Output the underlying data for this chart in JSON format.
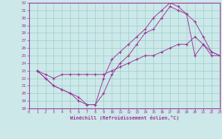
{
  "xlabel": "Windchill (Refroidissement éolien,°C)",
  "xlim": [
    0,
    23
  ],
  "ylim": [
    18,
    32
  ],
  "xticks": [
    0,
    1,
    2,
    3,
    4,
    5,
    6,
    7,
    8,
    9,
    10,
    11,
    12,
    13,
    14,
    15,
    16,
    17,
    18,
    19,
    20,
    21,
    22,
    23
  ],
  "yticks": [
    18,
    19,
    20,
    21,
    22,
    23,
    24,
    25,
    26,
    27,
    28,
    29,
    30,
    31,
    32
  ],
  "background_color": "#cce8e8",
  "grid_color": "#99cccc",
  "line_color": "#993399",
  "border_color": "#993399",
  "line1_x": [
    1,
    2,
    3,
    4,
    5,
    6,
    7,
    8,
    9,
    10,
    11,
    12,
    13,
    14,
    15,
    16,
    17,
    18,
    19,
    20,
    21,
    22,
    23
  ],
  "line1_y": [
    23.0,
    22.0,
    21.0,
    20.5,
    20.0,
    19.0,
    18.5,
    18.5,
    22.0,
    24.5,
    25.5,
    26.5,
    27.5,
    28.5,
    30.0,
    31.0,
    32.0,
    31.5,
    30.5,
    25.0,
    26.5,
    25.5,
    25.0
  ],
  "line2_x": [
    1,
    2,
    3,
    4,
    5,
    6,
    7,
    8,
    9,
    10,
    11,
    12,
    13,
    14,
    15,
    16,
    17,
    18,
    19,
    20,
    21,
    22,
    23
  ],
  "line2_y": [
    23.0,
    22.0,
    21.0,
    20.5,
    20.0,
    19.5,
    18.5,
    18.5,
    20.0,
    22.5,
    24.0,
    25.0,
    26.5,
    28.0,
    28.5,
    30.0,
    31.5,
    31.0,
    30.5,
    29.5,
    27.5,
    25.5,
    25.0
  ],
  "line3_x": [
    1,
    2,
    3,
    4,
    5,
    6,
    7,
    8,
    9,
    10,
    11,
    12,
    13,
    14,
    15,
    16,
    17,
    18,
    19,
    20,
    21,
    22,
    23
  ],
  "line3_y": [
    23.0,
    22.5,
    22.0,
    22.5,
    22.5,
    22.5,
    22.5,
    22.5,
    22.5,
    23.0,
    23.5,
    24.0,
    24.5,
    25.0,
    25.0,
    25.5,
    26.0,
    26.5,
    26.5,
    27.5,
    26.5,
    25.0,
    25.0
  ]
}
